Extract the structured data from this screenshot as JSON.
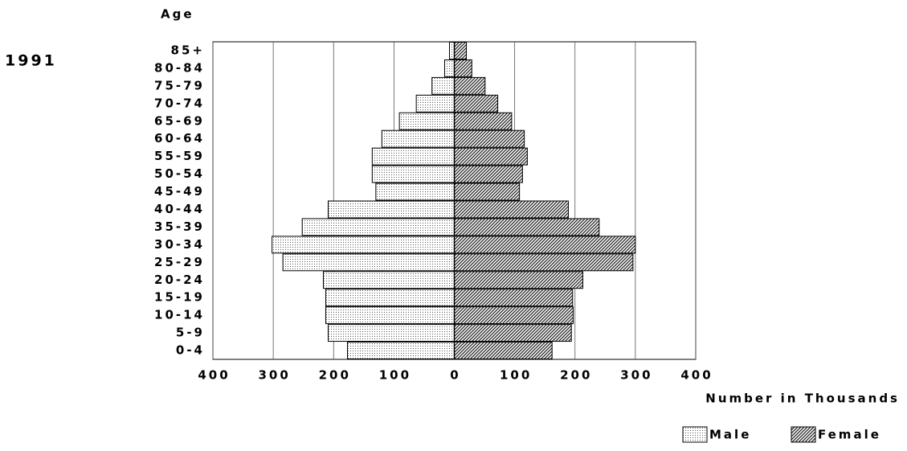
{
  "chart_data": {
    "type": "population-pyramid",
    "title": "1991",
    "y_label": "Age",
    "x_label": "Number in Thousands",
    "categories": [
      "0-4",
      "5-9",
      "10-14",
      "15-19",
      "20-24",
      "25-29",
      "30-34",
      "35-39",
      "40-44",
      "45-49",
      "50-54",
      "55-59",
      "60-64",
      "65-69",
      "70-74",
      "75-79",
      "80-84",
      "85+"
    ],
    "series": [
      {
        "name": "Male",
        "pattern": "dots",
        "color": "#555555",
        "values": [
          -177,
          -209,
          -213,
          -213,
          -217,
          -284,
          -302,
          -252,
          -209,
          -130,
          -136,
          -136,
          -120,
          -91,
          -63,
          -37,
          -16,
          -8
        ]
      },
      {
        "name": "Female",
        "pattern": "hatch",
        "color": "#222222",
        "values": [
          162,
          194,
          197,
          196,
          213,
          296,
          300,
          240,
          189,
          108,
          113,
          121,
          116,
          95,
          72,
          51,
          29,
          20
        ]
      }
    ],
    "xlim": [
      -400,
      400
    ],
    "xticks": [
      {
        "value": -400,
        "label": "400"
      },
      {
        "value": -300,
        "label": "300"
      },
      {
        "value": -200,
        "label": "200"
      },
      {
        "value": -100,
        "label": "100"
      },
      0,
      100,
      200,
      300,
      400
    ],
    "grid": true,
    "legend": "bottom-right"
  }
}
